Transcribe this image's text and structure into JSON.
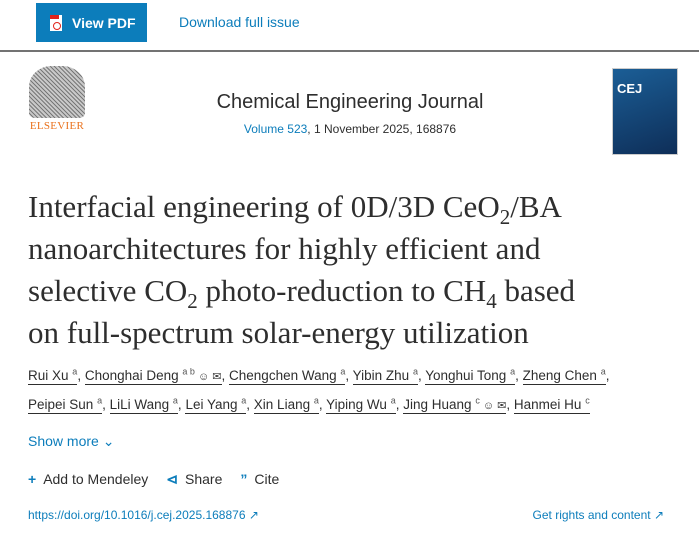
{
  "toolbar": {
    "view_pdf": "View PDF",
    "download": "Download full issue"
  },
  "publisher": {
    "logo_text": "ELSEVIER"
  },
  "journal": {
    "name": "Chemical Engineering Journal",
    "volume_link": "Volume 523",
    "issue_info": ", 1 November 2025, 168876",
    "cover_text": "CEJ"
  },
  "article": {
    "title_lines": [
      [
        "Interfacial engineering of 0D/3D CeO",
        "2",
        "/BA"
      ],
      [
        "nanoarchitectures for highly efficient and"
      ],
      [
        "selective CO",
        "2",
        " photo-reduction to CH",
        "4",
        " based"
      ],
      [
        "on full-spectrum solar-energy utilization"
      ]
    ]
  },
  "authors": [
    {
      "name": "Rui Xu",
      "aff": "a"
    },
    {
      "name": "Chonghai Deng",
      "aff": "a b",
      "corresponding": true
    },
    {
      "name": "Chengchen Wang",
      "aff": "a"
    },
    {
      "name": "Yibin Zhu",
      "aff": "a"
    },
    {
      "name": "Yonghui Tong",
      "aff": "a"
    },
    {
      "name": "Zheng Chen",
      "aff": "a"
    },
    {
      "name": "Peipei Sun",
      "aff": "a"
    },
    {
      "name": "LiLi Wang",
      "aff": "a"
    },
    {
      "name": "Lei Yang",
      "aff": "a"
    },
    {
      "name": "Xin Liang",
      "aff": "a"
    },
    {
      "name": "Yiping Wu",
      "aff": "a"
    },
    {
      "name": "Jing Huang",
      "aff": "c",
      "corresponding": true
    },
    {
      "name": "Hanmei Hu",
      "aff": "c"
    }
  ],
  "show_more": "Show more",
  "actions": {
    "mendeley": "Add to Mendeley",
    "share": "Share",
    "cite": "Cite"
  },
  "doi": "https://doi.org/10.1016/j.cej.2025.168876",
  "rights": "Get rights and content",
  "colors": {
    "accent": "#0c7dbb",
    "elsevier": "#e9711c"
  }
}
